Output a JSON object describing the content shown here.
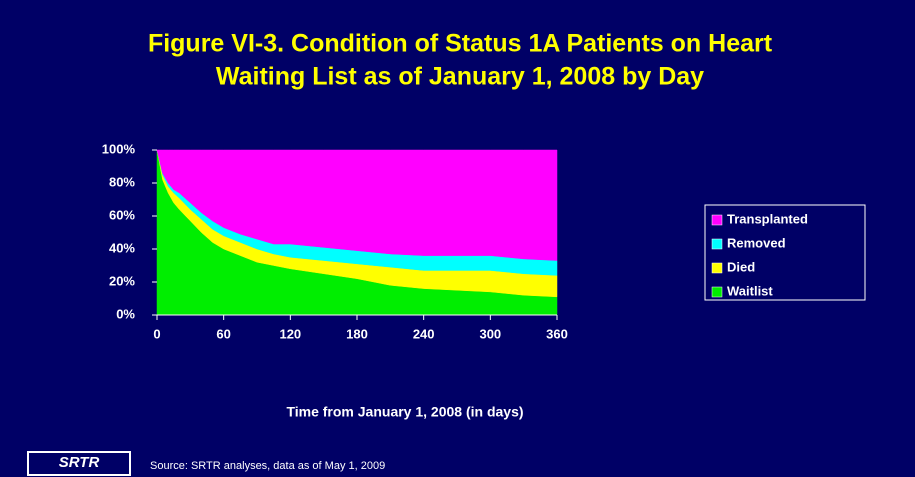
{
  "chart_data": {
    "type": "stacked_area",
    "title": [
      "Figure VI-3. Condition of Status 1A Patients on Heart",
      "Waiting List as of January 1, 2008 by Day"
    ],
    "x_label": "Time from January 1, 2008 (in days)",
    "source": "Source: SRTR analyses, data as of May 1, 2009",
    "logo": "SRTR",
    "x": [
      0,
      5,
      10,
      15,
      20,
      30,
      40,
      50,
      60,
      75,
      90,
      105,
      120,
      150,
      180,
      210,
      240,
      270,
      300,
      330,
      360
    ],
    "series": [
      {
        "name": "Waitlist",
        "color": "#00ee00",
        "values": [
          100,
          82,
          74,
          68,
          64,
          57,
          50,
          44,
          40,
          36,
          32,
          30,
          28,
          25,
          22,
          18,
          16,
          15,
          14,
          12,
          11
        ]
      },
      {
        "name": "Died",
        "color": "#ffff00",
        "values": [
          0,
          3,
          4,
          6,
          7,
          7,
          8,
          8,
          8,
          8,
          8,
          7,
          7,
          8,
          9,
          11,
          11,
          12,
          13,
          13,
          13
        ]
      },
      {
        "name": "Removed",
        "color": "#00ffff",
        "values": [
          0,
          1,
          2,
          2,
          3,
          4,
          4,
          5,
          5,
          5,
          6,
          6,
          8,
          8,
          8,
          8,
          9,
          9,
          9,
          9,
          9
        ]
      },
      {
        "name": "Transplanted",
        "color": "#ff00ff",
        "values": [
          0,
          14,
          20,
          24,
          26,
          32,
          38,
          43,
          47,
          51,
          54,
          57,
          57,
          59,
          61,
          63,
          64,
          64,
          64,
          66,
          67
        ]
      }
    ],
    "xlim": [
      0,
      360
    ],
    "xticks": [
      0,
      60,
      120,
      180,
      240,
      300,
      360
    ],
    "ylim": [
      0,
      100
    ],
    "yticks": [
      {
        "value": 0,
        "label": "0%"
      },
      {
        "value": 20,
        "label": "20%"
      },
      {
        "value": 40,
        "label": "40%"
      },
      {
        "value": 60,
        "label": "60%"
      },
      {
        "value": 80,
        "label": "80%"
      },
      {
        "value": 100,
        "label": "100%"
      }
    ],
    "legend": "right"
  }
}
